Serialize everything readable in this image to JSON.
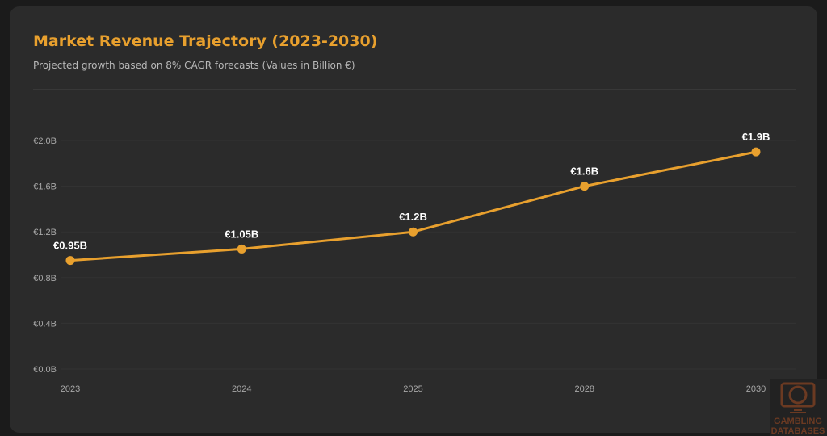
{
  "header": {
    "title": "Market Revenue Trajectory (2023-2030)",
    "subtitle": "Projected growth based on 8% CAGR forecasts (Values in Billion €)"
  },
  "watermark": {
    "text": "GAMBLING DATABASES"
  },
  "chart_data": {
    "type": "line",
    "title": "Market Revenue Trajectory (2023-2030)",
    "subtitle": "Projected growth based on 8% CAGR forecasts (Values in Billion €)",
    "categories": [
      "2023",
      "2024",
      "2025",
      "2028",
      "2030"
    ],
    "values": [
      0.95,
      1.05,
      1.2,
      1.6,
      1.9
    ],
    "data_labels": [
      "€0.95B",
      "€1.05B",
      "€1.2B",
      "€1.6B",
      "€1.9B"
    ],
    "yticks": [
      0,
      0.4,
      0.8,
      1.2,
      1.6,
      2.0
    ],
    "ytick_labels": [
      "€0.0B",
      "€0.4B",
      "€0.8B",
      "€1.2B",
      "€1.6B",
      "€2.0B"
    ],
    "ylim": [
      0,
      2.0
    ],
    "grid": true,
    "color": "#e8a02e",
    "legend": "none"
  }
}
